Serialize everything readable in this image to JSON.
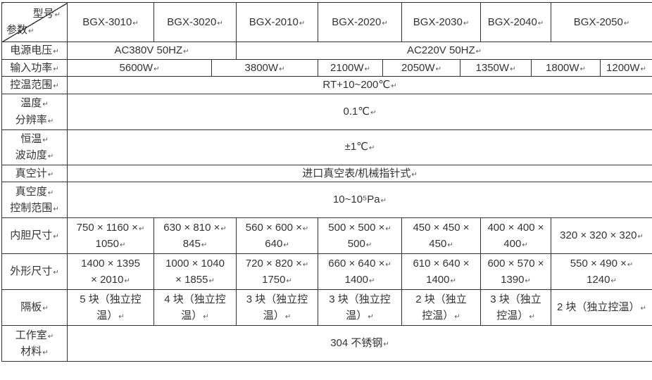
{
  "colors": {
    "border": "#333333",
    "text": "#333333",
    "background": "#ffffff"
  },
  "table": {
    "corner": {
      "model_label": "型号↵",
      "param_label": "参数↵"
    },
    "models": [
      "BGX-3010↵",
      "BGX-3020↵",
      "BGX-2010↵",
      "BGX-2020↵",
      "BGX-2030↵",
      "BGX-2040↵",
      "BGX-2050↵"
    ],
    "rows": [
      {
        "key": "power-voltage",
        "label": "电源电压↵",
        "cells": [
          "AC380V 50HZ↵",
          "AC220V 50HZ↵"
        ]
      },
      {
        "key": "input-power",
        "label": "输入功率↵",
        "cells": [
          "5600W↵",
          "3800W↵",
          "2100W↵",
          "2050W↵",
          "1350W↵",
          "1800W↵",
          "1200W↵"
        ]
      },
      {
        "key": "temp-control-range",
        "label": "控温范围↵",
        "cells": [
          "RT+10~200℃↵"
        ]
      },
      {
        "key": "temp-resolution",
        "label": "温度↵\n分辨率↵",
        "cells": [
          "0.1℃↵"
        ]
      },
      {
        "key": "temp-fluctuation",
        "label": "恒温↵\n波动度↵",
        "cells": [
          "±1℃↵"
        ]
      },
      {
        "key": "vacuum-gauge",
        "label": "真空计↵",
        "cells": [
          "进口真空表/机械指针式↵"
        ]
      },
      {
        "key": "vacuum-control-range",
        "label": "真空度↵\n控制范围↵",
        "cells": [
          "10~10⁵Pa↵"
        ]
      },
      {
        "key": "inner-size",
        "label": "内胆尺寸↵",
        "cells": [
          "750 × 1160 ×↵\n1050↵",
          "630 × 810 ×↵\n845↵",
          "560 × 600 ×↵\n640↵",
          "500 × 500 ×↵\n500↵",
          "450 × 450 ×\n450↵",
          "400 × 400 ×\n400↵",
          "320 × 320 × 320↵"
        ]
      },
      {
        "key": "outer-size",
        "label": "外形尺寸↵",
        "cells": [
          "1400 × 1395\n× 2010↵",
          "1000 × 1040\n× 1855↵",
          "720 × 820 ×↵\n1750↵",
          "660 × 640 ×↵\n1400↵",
          "610 × 640 ×\n1400↵",
          "600 × 570 ×\n1390↵",
          "550 × 490 ×↵\n1240↵"
        ]
      },
      {
        "key": "shelves",
        "label": "隔板↵",
        "cells": [
          "5 块（独立控\n温）↵",
          "4 块（独立控\n温）↵",
          "3 块（独立控\n温）↵",
          "3 块（独立控\n温）↵",
          "2 块（独立\n控温）↵",
          "3 块（独立\n控温）↵",
          "2 块（独立控温）↵"
        ]
      },
      {
        "key": "chamber-material",
        "label": "工作室↵\n材料↵",
        "cells": [
          "304 不锈钢↵"
        ]
      }
    ]
  }
}
